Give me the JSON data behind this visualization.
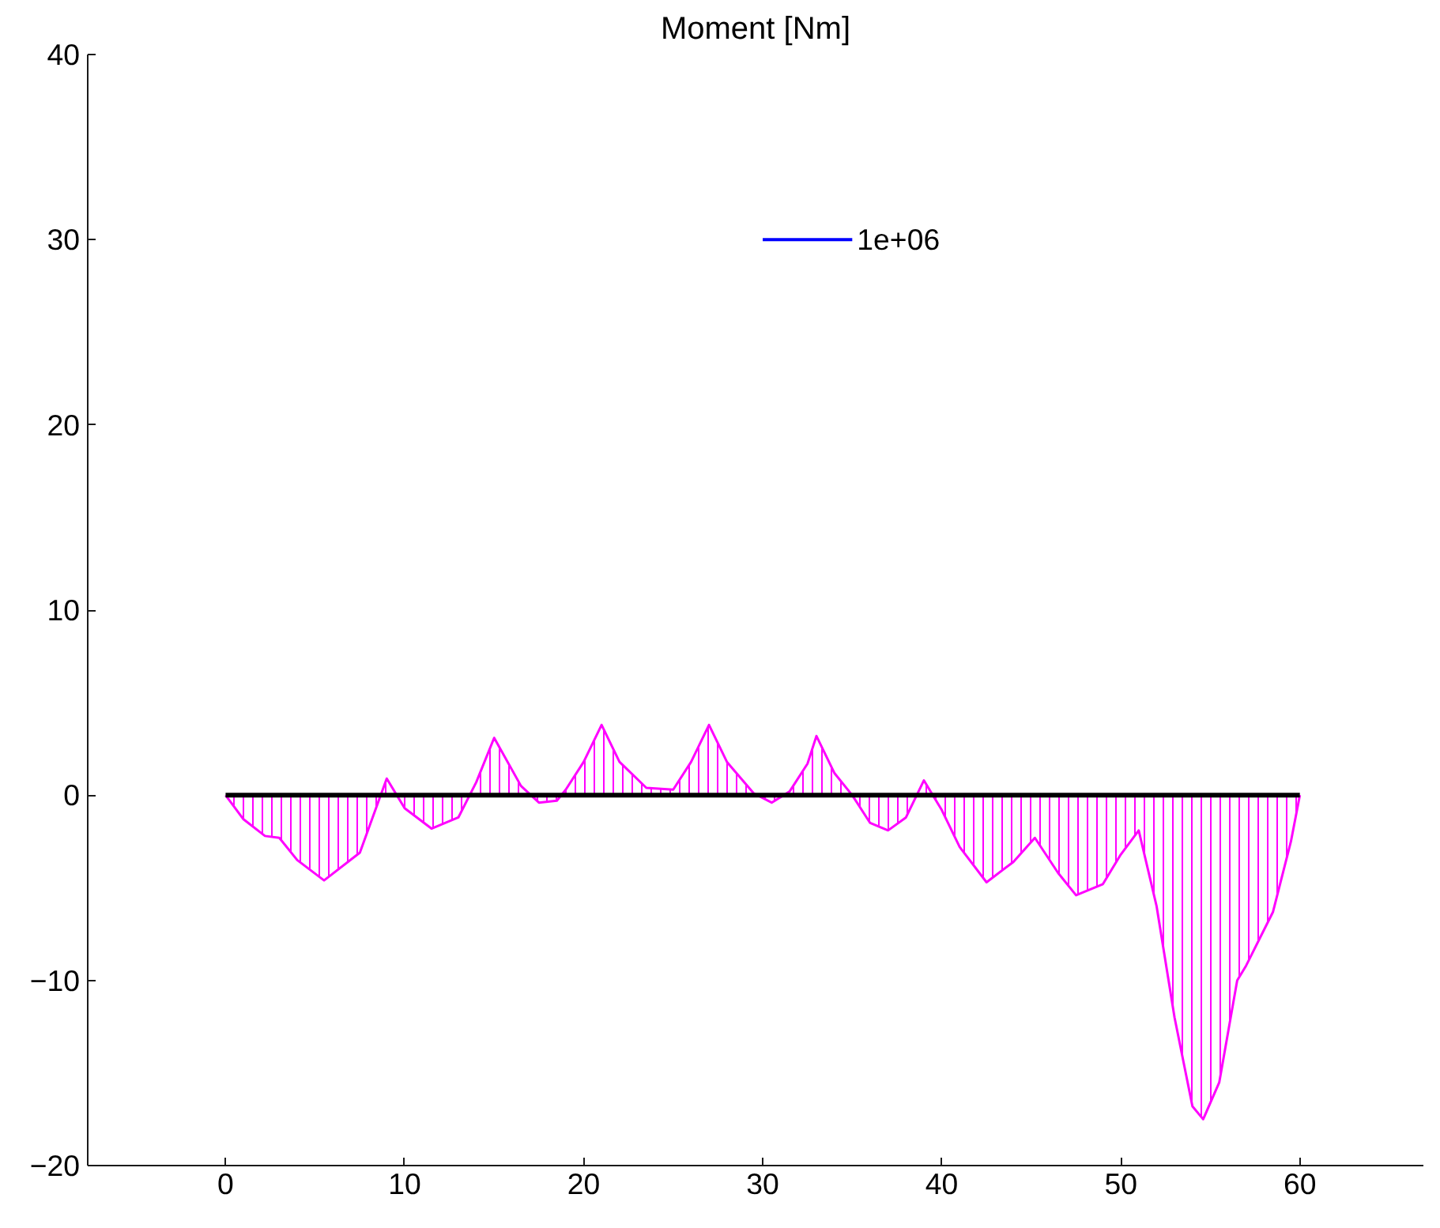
{
  "chart_data": {
    "type": "area",
    "title": "Moment [Nm]",
    "xlim": [
      -7.7,
      66.9
    ],
    "ylim": [
      -20,
      40
    ],
    "xticks": [
      0,
      10,
      20,
      30,
      40,
      50,
      60
    ],
    "yticks": [
      -20,
      -10,
      0,
      10,
      20,
      30,
      40
    ],
    "grid": false,
    "series": [
      {
        "color": "#ff00ff",
        "x": [
          0,
          1,
          2.2,
          3,
          4,
          5.5,
          7.5,
          9,
          10,
          11.5,
          13,
          14,
          15,
          16.5,
          17.5,
          18.5,
          19,
          20,
          21,
          22,
          23.5,
          25,
          26,
          27,
          28,
          29.5,
          30.5,
          31.5,
          32.5,
          33,
          34,
          35,
          36,
          37,
          38,
          39,
          40,
          41,
          42.5,
          44,
          45.2,
          46.5,
          47.5,
          49,
          50,
          51,
          52,
          53,
          54,
          54.6,
          55.5,
          56.5,
          57,
          58.5,
          59.5,
          60
        ],
        "values": [
          0,
          -1.3,
          -2.2,
          -2.3,
          -3.5,
          -4.6,
          -3.1,
          0.9,
          -0.7,
          -1.8,
          -1.2,
          0.7,
          3.1,
          0.5,
          -0.4,
          -0.3,
          0.3,
          1.8,
          3.8,
          1.8,
          0.4,
          0.3,
          1.8,
          3.8,
          1.8,
          0.1,
          -0.4,
          0.2,
          1.7,
          3.2,
          1.2,
          0,
          -1.5,
          -1.9,
          -1.2,
          0.8,
          -0.8,
          -2.8,
          -4.7,
          -3.6,
          -2.3,
          -4.2,
          -5.4,
          -4.8,
          -3.2,
          -1.9,
          -6,
          -12,
          -16.8,
          -17.5,
          -15.5,
          -10,
          -9.2,
          -6.3,
          -2.5,
          0
        ]
      },
      {
        "type": "line",
        "color": "#000000",
        "x": [
          0,
          10,
          20,
          30,
          40,
          50,
          60
        ],
        "values": [
          0,
          0,
          0,
          0,
          0,
          0,
          0
        ]
      },
      {
        "type": "line",
        "color": "#0000ff",
        "name": "1e+06",
        "x": [
          30,
          35
        ],
        "values": [
          30,
          30
        ]
      }
    ]
  }
}
